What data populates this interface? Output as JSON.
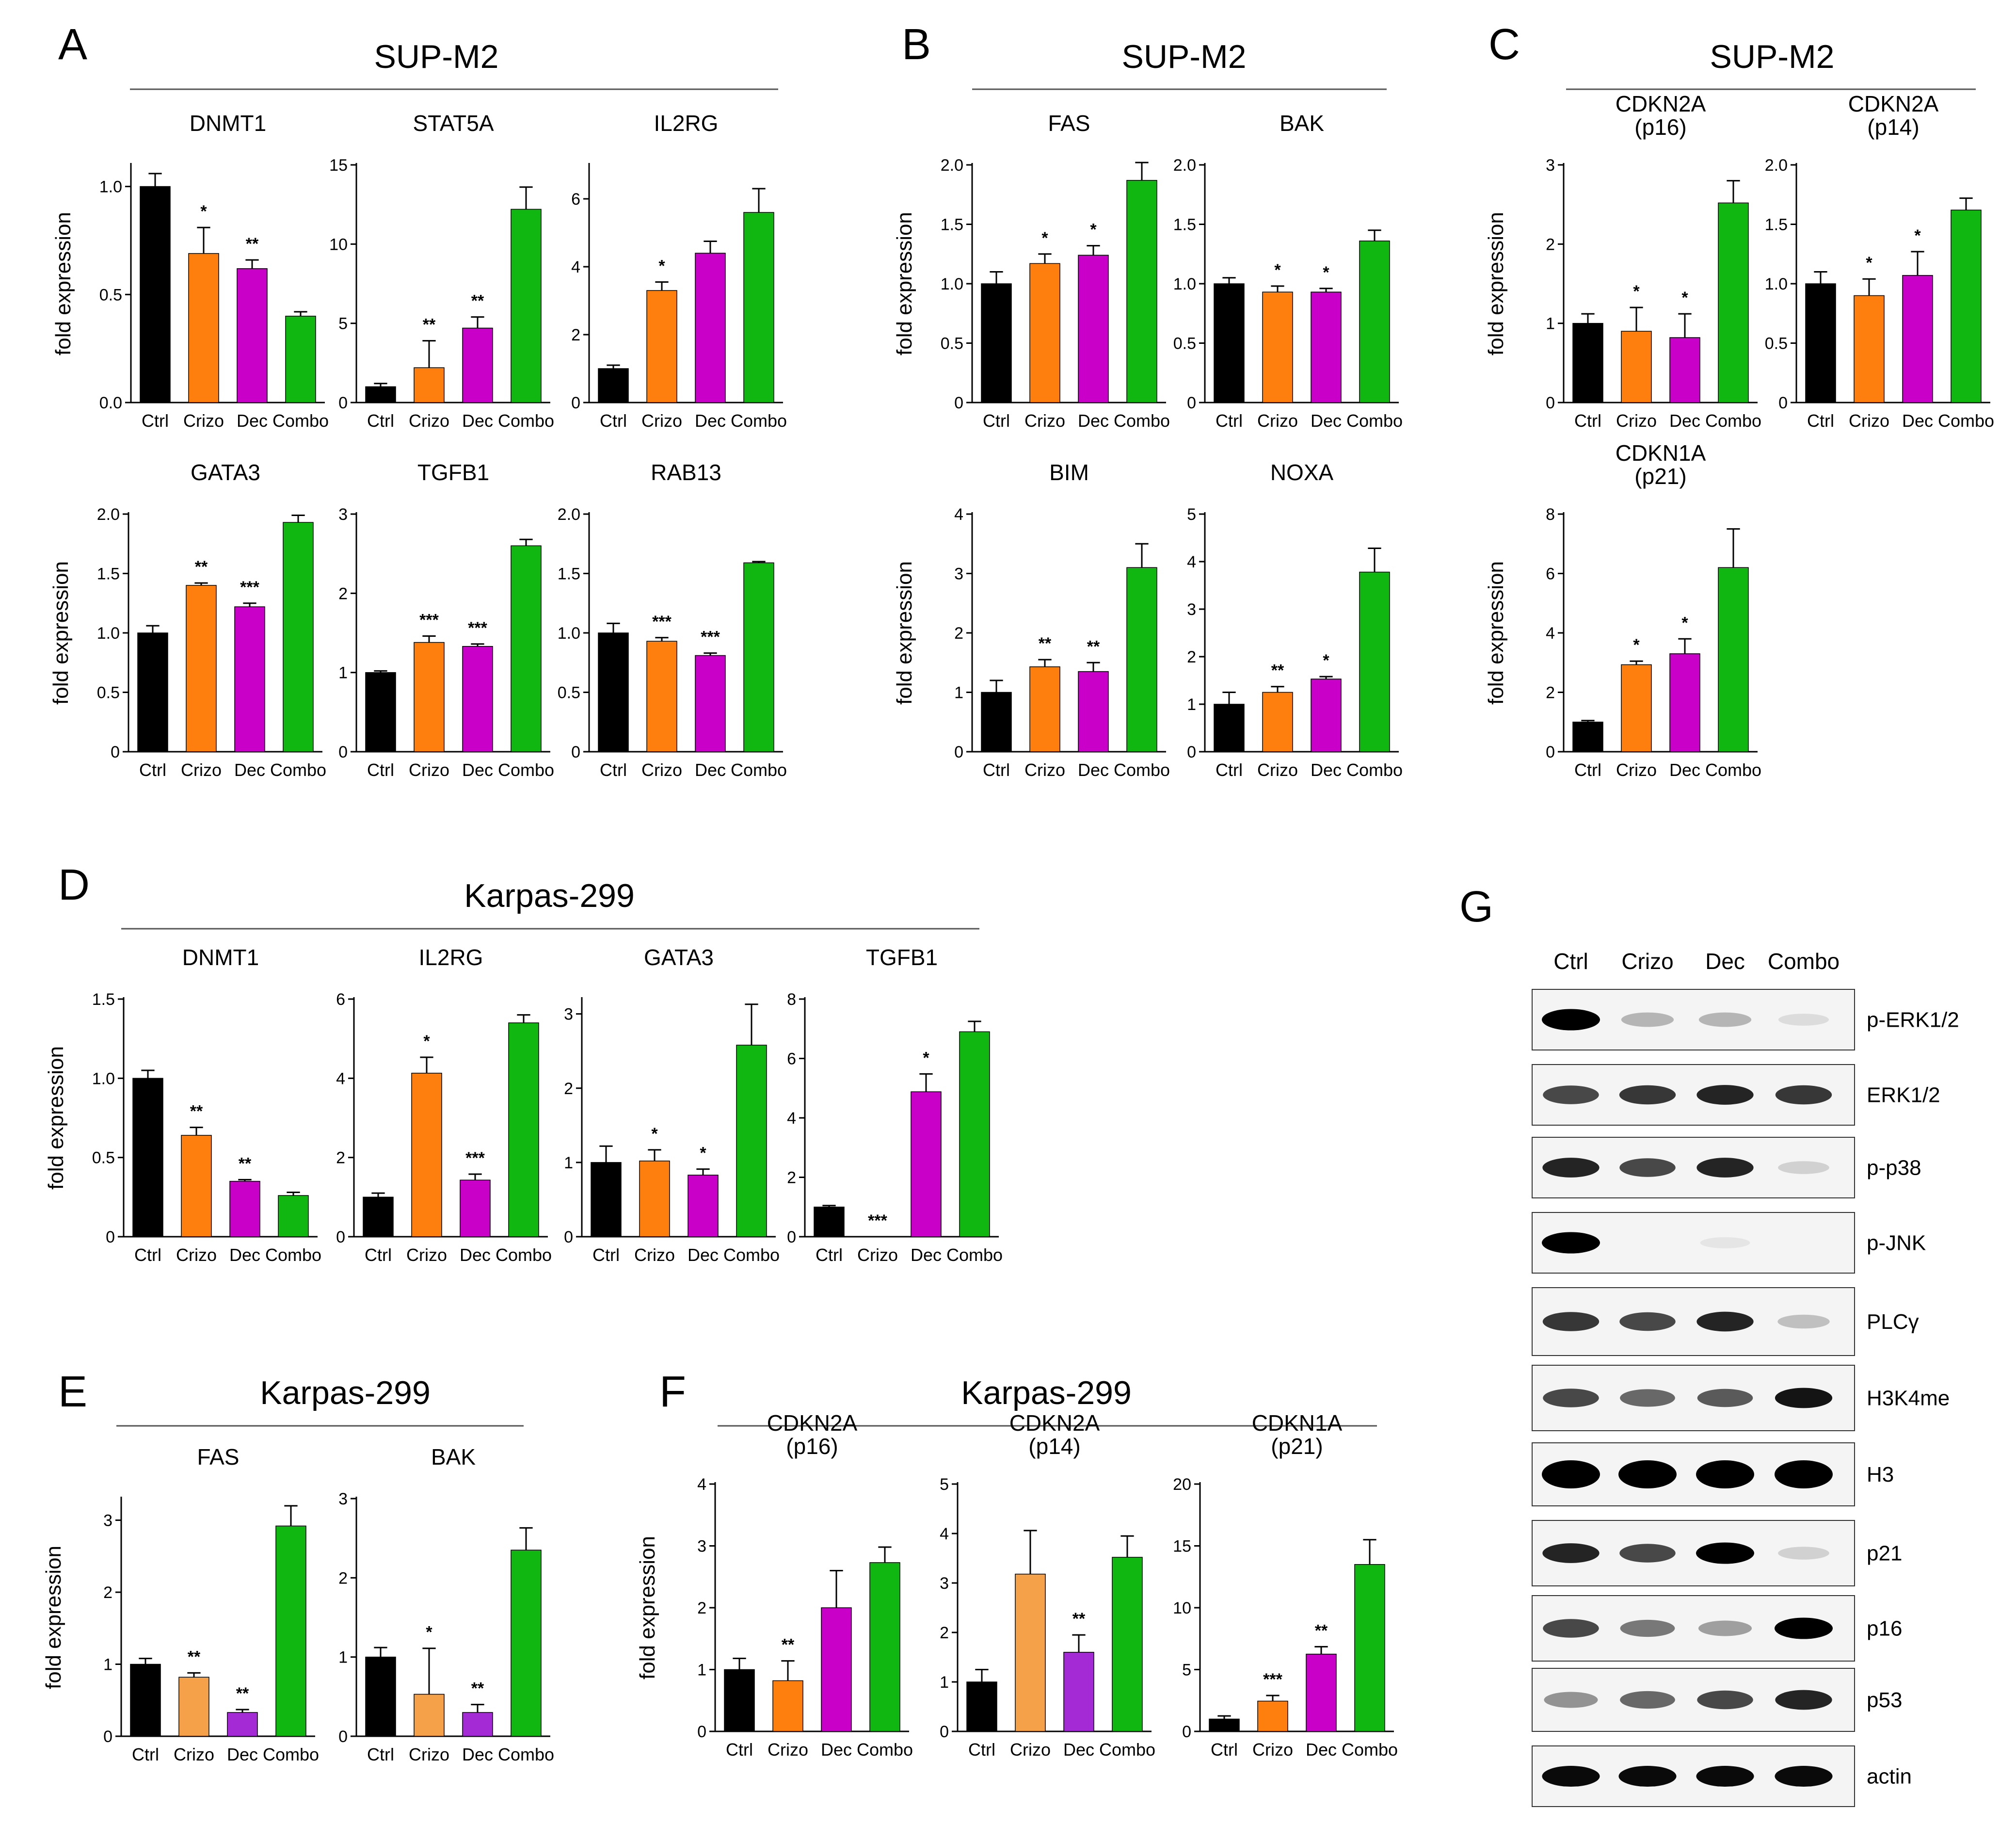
{
  "colors": {
    "Ctrl": "#000000",
    "Crizo": "#ff7f0e",
    "CrizoLight": "#f5a14a",
    "Dec": "#c800c8",
    "DecLight": "#a42ad6",
    "Combo": "#11b711"
  },
  "groups": [
    {
      "letter": "A",
      "title": "SUP-M2"
    },
    {
      "letter": "B",
      "title": "SUP-M2"
    },
    {
      "letter": "C",
      "title": "SUP-M2"
    },
    {
      "letter": "D",
      "title": "Karpas-299"
    },
    {
      "letter": "E",
      "title": "Karpas-299"
    },
    {
      "letter": "F",
      "title": "Karpas-299"
    },
    {
      "letter": "G",
      "title": ""
    }
  ],
  "chart_data": [
    {
      "id": "A1",
      "type": "bar",
      "title": "DNMT1",
      "ylabel": "fold expression",
      "categories": [
        "Ctrl",
        "Crizo",
        "Dec",
        "Combo"
      ],
      "values": [
        1.0,
        0.69,
        0.62,
        0.4
      ],
      "errors": [
        0.06,
        0.12,
        0.04,
        0.02
      ],
      "significance": [
        "",
        "*",
        "**",
        ""
      ],
      "ylim": [
        0,
        1.1
      ],
      "ticks": [
        0.0,
        0.5,
        1.0
      ],
      "tick_labels": [
        "0.0",
        "0.5",
        "1.0"
      ]
    },
    {
      "id": "A2",
      "type": "bar",
      "title": "STAT5A",
      "ylabel": "",
      "categories": [
        "Ctrl",
        "Crizo",
        "Dec",
        "Combo"
      ],
      "values": [
        1.0,
        2.2,
        4.7,
        12.2
      ],
      "errors": [
        0.2,
        1.7,
        0.7,
        1.4
      ],
      "significance": [
        "",
        "**",
        "**",
        ""
      ],
      "ylim": [
        0,
        15
      ],
      "ticks": [
        0,
        5,
        10,
        15
      ],
      "tick_labels": [
        "0",
        "5",
        "10",
        "15"
      ]
    },
    {
      "id": "A3",
      "type": "bar",
      "title": "IL2RG",
      "ylabel": "",
      "categories": [
        "Ctrl",
        "Crizo",
        "Dec",
        "Combo"
      ],
      "values": [
        1.0,
        3.3,
        4.4,
        5.6
      ],
      "errors": [
        0.1,
        0.25,
        0.35,
        0.7
      ],
      "significance": [
        "",
        "*",
        "",
        ""
      ],
      "ylim": [
        0,
        7
      ],
      "ticks": [
        0,
        2,
        4,
        6
      ],
      "tick_labels": [
        "0",
        "2",
        "4",
        "6"
      ]
    },
    {
      "id": "A4",
      "type": "bar",
      "title": "GATA3",
      "ylabel": "fold expression",
      "categories": [
        "Ctrl",
        "Crizo",
        "Dec",
        "Combo"
      ],
      "values": [
        1.0,
        1.4,
        1.22,
        1.93
      ],
      "errors": [
        0.06,
        0.02,
        0.03,
        0.06
      ],
      "significance": [
        "",
        "**",
        "***",
        ""
      ],
      "ylim": [
        0,
        2.0
      ],
      "ticks": [
        0.0,
        0.5,
        1.0,
        1.5,
        2.0
      ],
      "tick_labels": [
        "0",
        "0.5",
        "1.0",
        "1.5",
        "2.0"
      ]
    },
    {
      "id": "A5",
      "type": "bar",
      "title": "TGFB1",
      "ylabel": "",
      "categories": [
        "Ctrl",
        "Crizo",
        "Dec",
        "Combo"
      ],
      "values": [
        1.0,
        1.38,
        1.33,
        2.6
      ],
      "errors": [
        0.02,
        0.08,
        0.03,
        0.08
      ],
      "significance": [
        "",
        "***",
        "***",
        ""
      ],
      "ylim": [
        0,
        3
      ],
      "ticks": [
        0,
        1,
        2,
        3
      ],
      "tick_labels": [
        "0",
        "1",
        "2",
        "3"
      ]
    },
    {
      "id": "A6",
      "type": "bar",
      "title": "RAB13",
      "ylabel": "",
      "categories": [
        "Ctrl",
        "Crizo",
        "Dec",
        "Combo"
      ],
      "values": [
        1.0,
        0.93,
        0.81,
        1.59
      ],
      "errors": [
        0.08,
        0.03,
        0.02,
        0.01
      ],
      "significance": [
        "",
        "***",
        "***",
        ""
      ],
      "ylim": [
        0,
        2.0
      ],
      "ticks": [
        0.0,
        0.5,
        1.0,
        1.5,
        2.0
      ],
      "tick_labels": [
        "0",
        "0.5",
        "1.0",
        "1.5",
        "2.0"
      ]
    },
    {
      "id": "B1",
      "type": "bar",
      "title": "FAS",
      "ylabel": "fold expression",
      "categories": [
        "Ctrl",
        "Crizo",
        "Dec",
        "Combo"
      ],
      "values": [
        1.0,
        1.17,
        1.24,
        1.87
      ],
      "errors": [
        0.1,
        0.08,
        0.08,
        0.15
      ],
      "significance": [
        "",
        "*",
        "*",
        ""
      ],
      "ylim": [
        0,
        2.0
      ],
      "ticks": [
        0,
        0.5,
        1.0,
        1.5,
        2.0
      ],
      "tick_labels": [
        "0",
        "0.5",
        "1.0",
        "1.5",
        "2.0"
      ]
    },
    {
      "id": "B2",
      "type": "bar",
      "title": "BAK",
      "ylabel": "",
      "categories": [
        "Ctrl",
        "Crizo",
        "Dec",
        "Combo"
      ],
      "values": [
        1.0,
        0.93,
        0.93,
        1.36
      ],
      "errors": [
        0.05,
        0.05,
        0.03,
        0.09
      ],
      "significance": [
        "",
        "*",
        "*",
        ""
      ],
      "ylim": [
        0,
        2.0
      ],
      "ticks": [
        0,
        0.5,
        1.0,
        1.5,
        2.0
      ],
      "tick_labels": [
        "0",
        "0.5",
        "1.0",
        "1.5",
        "2.0"
      ]
    },
    {
      "id": "B3",
      "type": "bar",
      "title": "BIM",
      "ylabel": "fold expression",
      "categories": [
        "Ctrl",
        "Crizo",
        "Dec",
        "Combo"
      ],
      "values": [
        1.0,
        1.43,
        1.35,
        3.1
      ],
      "errors": [
        0.2,
        0.12,
        0.15,
        0.4
      ],
      "significance": [
        "",
        "**",
        "**",
        ""
      ],
      "ylim": [
        0,
        4
      ],
      "ticks": [
        0,
        1,
        2,
        3,
        4
      ],
      "tick_labels": [
        "0",
        "1",
        "2",
        "3",
        "4"
      ]
    },
    {
      "id": "B4",
      "type": "bar",
      "title": "NOXA",
      "ylabel": "",
      "categories": [
        "Ctrl",
        "Crizo",
        "Dec",
        "Combo"
      ],
      "values": [
        1.0,
        1.25,
        1.53,
        3.78
      ],
      "errors": [
        0.25,
        0.12,
        0.05,
        0.5
      ],
      "significance": [
        "",
        "**",
        "*",
        ""
      ],
      "ylim": [
        0,
        5
      ],
      "ticks": [
        0,
        1,
        2,
        3,
        4,
        5
      ],
      "tick_labels": [
        "0",
        "1",
        "2",
        "3",
        "4",
        "5"
      ]
    },
    {
      "id": "C1",
      "type": "bar",
      "title": "CDKN2A",
      "title2": "(p16)",
      "ylabel": "fold expression",
      "categories": [
        "Ctrl",
        "Crizo",
        "Dec",
        "Combo"
      ],
      "values": [
        1.0,
        0.9,
        0.82,
        2.52
      ],
      "errors": [
        0.12,
        0.3,
        0.3,
        0.28
      ],
      "significance": [
        "",
        "*",
        "*",
        ""
      ],
      "ylim": [
        0,
        3
      ],
      "ticks": [
        0,
        1,
        2,
        3
      ],
      "tick_labels": [
        "0",
        "1",
        "2",
        "3"
      ]
    },
    {
      "id": "C2",
      "type": "bar",
      "title": "CDKN2A",
      "title2": "(p14)",
      "ylabel": "",
      "categories": [
        "Ctrl",
        "Crizo",
        "Dec",
        "Combo"
      ],
      "values": [
        1.0,
        0.9,
        1.07,
        1.62
      ],
      "errors": [
        0.1,
        0.14,
        0.2,
        0.1
      ],
      "significance": [
        "",
        "*",
        "*",
        ""
      ],
      "ylim": [
        0,
        2.0
      ],
      "ticks": [
        0,
        0.5,
        1.0,
        1.5,
        2.0
      ],
      "tick_labels": [
        "0",
        "0.5",
        "1.0",
        "1.5",
        "2.0"
      ]
    },
    {
      "id": "C3",
      "type": "bar",
      "title": "CDKN1A",
      "title2": "(p21)",
      "ylabel": "fold expression",
      "categories": [
        "Ctrl",
        "Crizo",
        "Dec",
        "Combo"
      ],
      "values": [
        1.0,
        2.93,
        3.3,
        6.2
      ],
      "errors": [
        0.05,
        0.12,
        0.5,
        1.3
      ],
      "significance": [
        "",
        "*",
        "*",
        ""
      ],
      "ylim": [
        0,
        8
      ],
      "ticks": [
        0,
        2,
        4,
        6,
        8
      ],
      "tick_labels": [
        "0",
        "2",
        "4",
        "6",
        "8"
      ]
    },
    {
      "id": "D1",
      "type": "bar",
      "title": "DNMT1",
      "ylabel": "fold expression",
      "categories": [
        "Ctrl",
        "Crizo",
        "Dec",
        "Combo"
      ],
      "values": [
        1.0,
        0.64,
        0.35,
        0.26
      ],
      "errors": [
        0.05,
        0.05,
        0.01,
        0.02
      ],
      "significance": [
        "",
        "**",
        "**",
        ""
      ],
      "ylim": [
        0,
        1.5
      ],
      "ticks": [
        0,
        0.5,
        1.0,
        1.5
      ],
      "tick_labels": [
        "0",
        "0.5",
        "1.0",
        "1.5"
      ]
    },
    {
      "id": "D2",
      "type": "bar",
      "title": "IL2RG",
      "ylabel": "",
      "categories": [
        "Ctrl",
        "Crizo",
        "Dec",
        "Combo"
      ],
      "values": [
        1.0,
        4.13,
        1.43,
        5.4
      ],
      "errors": [
        0.1,
        0.4,
        0.15,
        0.2
      ],
      "significance": [
        "",
        "*",
        "***",
        ""
      ],
      "ylim": [
        0,
        6
      ],
      "ticks": [
        0,
        2,
        4,
        6
      ],
      "tick_labels": [
        "0",
        "2",
        "4",
        "6"
      ]
    },
    {
      "id": "D3",
      "type": "bar",
      "title": "GATA3",
      "ylabel": "",
      "categories": [
        "Ctrl",
        "Crizo",
        "Dec",
        "Combo"
      ],
      "values": [
        1.0,
        1.02,
        0.83,
        2.58
      ],
      "errors": [
        0.22,
        0.15,
        0.08,
        0.55
      ],
      "significance": [
        "",
        "*",
        "*",
        ""
      ],
      "ylim": [
        0,
        3.2
      ],
      "ticks": [
        0,
        1,
        2,
        3
      ],
      "tick_labels": [
        "0",
        "1",
        "2",
        "3"
      ]
    },
    {
      "id": "D4",
      "type": "bar",
      "title": "TGFB1",
      "ylabel": "",
      "categories": [
        "Ctrl",
        "Crizo",
        "Dec",
        "Combo"
      ],
      "values": [
        1.0,
        0.0,
        4.88,
        6.9
      ],
      "errors": [
        0.05,
        0.0,
        0.6,
        0.35
      ],
      "significance": [
        "",
        "***",
        "*",
        ""
      ],
      "ylim": [
        0,
        8
      ],
      "ticks": [
        0,
        2,
        4,
        6,
        8
      ],
      "tick_labels": [
        "0",
        "2",
        "4",
        "6",
        "8"
      ]
    },
    {
      "id": "E1",
      "type": "bar",
      "title": "FAS",
      "ylabel": "fold expression",
      "categories": [
        "Ctrl",
        "Crizo",
        "Dec",
        "Combo"
      ],
      "values": [
        1.0,
        0.82,
        0.33,
        2.92
      ],
      "errors": [
        0.08,
        0.06,
        0.04,
        0.28
      ],
      "significance": [
        "",
        "**",
        "**",
        ""
      ],
      "ylim": [
        0,
        3.3
      ],
      "ticks": [
        0,
        1,
        2,
        3
      ],
      "tick_labels": [
        "0",
        "1",
        "2",
        "3"
      ]
    },
    {
      "id": "E2",
      "type": "bar",
      "title": "BAK",
      "ylabel": "",
      "categories": [
        "Ctrl",
        "Crizo",
        "Dec",
        "Combo"
      ],
      "values": [
        1.0,
        0.53,
        0.3,
        2.35
      ],
      "errors": [
        0.12,
        0.58,
        0.1,
        0.28
      ],
      "significance": [
        "",
        "*",
        "**",
        ""
      ],
      "ylim": [
        0,
        3
      ],
      "ticks": [
        0,
        1,
        2,
        3
      ],
      "tick_labels": [
        "0",
        "1",
        "2",
        "3"
      ]
    },
    {
      "id": "F1",
      "type": "bar",
      "title": "CDKN2A",
      "title2": "(p16)",
      "ylabel": "fold expression",
      "categories": [
        "Ctrl",
        "Crizo",
        "Dec",
        "Combo"
      ],
      "values": [
        1.0,
        0.82,
        2.0,
        2.73
      ],
      "errors": [
        0.18,
        0.32,
        0.6,
        0.25
      ],
      "significance": [
        "",
        "**",
        "",
        ""
      ],
      "ylim": [
        0,
        4
      ],
      "ticks": [
        0,
        1,
        2,
        3,
        4
      ],
      "tick_labels": [
        "0",
        "1",
        "2",
        "3",
        "4"
      ]
    },
    {
      "id": "F2",
      "type": "bar",
      "title": "CDKN2A",
      "title2": "(p14)",
      "ylabel": "",
      "categories": [
        "Ctrl",
        "Crizo",
        "Dec",
        "Combo"
      ],
      "values": [
        1.0,
        3.18,
        1.6,
        3.52
      ],
      "errors": [
        0.25,
        0.88,
        0.35,
        0.43
      ],
      "significance": [
        "",
        "",
        "**",
        ""
      ],
      "ylim": [
        0,
        5
      ],
      "ticks": [
        0,
        1,
        2,
        3,
        4,
        5
      ],
      "tick_labels": [
        "0",
        "1",
        "2",
        "3",
        "4",
        "5"
      ]
    },
    {
      "id": "F3",
      "type": "bar",
      "title": "CDKN1A",
      "title2": "(p21)",
      "ylabel": "",
      "categories": [
        "Ctrl",
        "Crizo",
        "Dec",
        "Combo"
      ],
      "values": [
        1.0,
        2.45,
        6.25,
        13.5
      ],
      "errors": [
        0.25,
        0.45,
        0.6,
        2.0
      ],
      "significance": [
        "",
        "***",
        "**",
        ""
      ],
      "ylim": [
        0,
        20
      ],
      "ticks": [
        0,
        5,
        10,
        15,
        20
      ],
      "tick_labels": [
        "0",
        "5",
        "10",
        "15",
        "20"
      ]
    }
  ],
  "western_blot": {
    "lanes": [
      "Ctrl",
      "Crizo",
      "Dec",
      "Combo"
    ],
    "bands": [
      {
        "label": "p-ERK1/2",
        "intensity": [
          1.0,
          0.35,
          0.35,
          0.12
        ]
      },
      {
        "label": "ERK1/2",
        "intensity": [
          0.75,
          0.8,
          0.85,
          0.8
        ]
      },
      {
        "label": "p-p38",
        "intensity": [
          0.85,
          0.75,
          0.85,
          0.2
        ]
      },
      {
        "label": "p-JNK",
        "intensity": [
          1.0,
          0.0,
          0.04,
          0.0
        ]
      },
      {
        "label": "PLCγ",
        "intensity": [
          0.8,
          0.75,
          0.85,
          0.3
        ]
      },
      {
        "label": "H3K4me",
        "intensity": [
          0.75,
          0.65,
          0.7,
          0.9
        ]
      },
      {
        "label": "H3",
        "intensity": [
          1.0,
          1.0,
          1.0,
          1.0
        ]
      },
      {
        "label": "p21",
        "intensity": [
          0.85,
          0.75,
          1.0,
          0.2
        ]
      },
      {
        "label": "p16",
        "intensity": [
          0.75,
          0.6,
          0.45,
          1.0
        ]
      },
      {
        "label": "p53",
        "intensity": [
          0.5,
          0.65,
          0.75,
          0.85
        ]
      },
      {
        "label": "actin",
        "intensity": [
          0.95,
          0.95,
          0.95,
          0.95
        ]
      }
    ]
  }
}
